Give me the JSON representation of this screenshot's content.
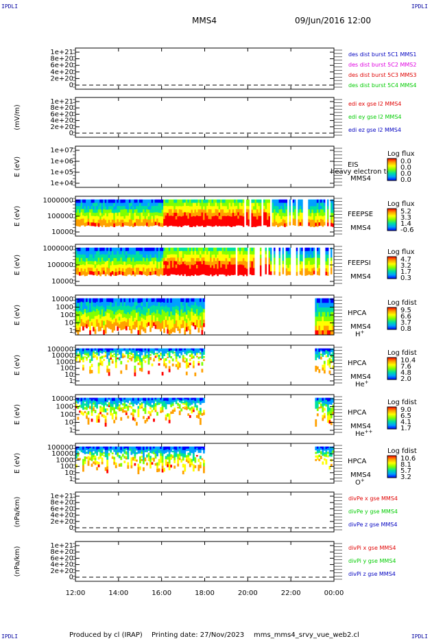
{
  "corner_label": "IPDLI",
  "header": {
    "spacecraft": "MMS4",
    "datetime": "09/Jun/2016 12:00"
  },
  "footer": {
    "produced": "Produced by cl (IRAP)",
    "printing": "Printing date: 27/Nov/2023",
    "script": "mms_mms4_srvy_vue_web2.cl"
  },
  "colors": {
    "red": "#e00000",
    "magenta": "#e000e0",
    "green": "#00cc00",
    "blue": "#0000c0",
    "colorbar": [
      "#ff0000",
      "#ffa000",
      "#ffff00",
      "#80ff00",
      "#00e0a0",
      "#00a0ff",
      "#0000ff"
    ]
  },
  "chart_data": [
    {
      "type": "line",
      "id": "dist",
      "yticks": [
        "1e+21",
        "8e+20",
        "6e+20",
        "4e+20",
        "2e+20",
        "0"
      ],
      "ylabel": "",
      "series": [
        {
          "name": "des dist burst 5C1 MMS1",
          "color": "#0000c0",
          "values": []
        },
        {
          "name": "des dist burst 5C2 MMS2",
          "color": "#e000e0",
          "values": []
        },
        {
          "name": "des dist burst 5C3 MMS3",
          "color": "#e00000",
          "values": []
        },
        {
          "name": "des dist burst 5C4 MMS4",
          "color": "#00cc00",
          "values": []
        }
      ]
    },
    {
      "type": "line",
      "id": "edi",
      "yticks": [
        "1e+21",
        "8e+20",
        "6e+20",
        "4e+20",
        "2e+20",
        "0"
      ],
      "ylabel": "(mV/m)",
      "series": [
        {
          "name": "edi ex gse l2 MMS4",
          "color": "#e00000",
          "values": []
        },
        {
          "name": "edi ey gse l2 MMS4",
          "color": "#00cc00",
          "values": []
        },
        {
          "name": "edi ez gse l2 MMS4",
          "color": "#0000c0",
          "values": []
        }
      ]
    },
    {
      "type": "heatmap",
      "id": "eis",
      "yticks": [
        "1e+07",
        "1e+06",
        "1e+05",
        "1e+04"
      ],
      "ylabel": "E (eV)",
      "labels": [
        "EIS",
        "MMS4"
      ],
      "overlay_text": "heavy electron to",
      "cb_title": "Log flux",
      "cb_ticks": [
        "0.0",
        "0.0",
        "0.0",
        "0.0"
      ]
    },
    {
      "type": "heatmap",
      "id": "feepse",
      "yticks": [
        "1000000",
        "100000",
        "10000"
      ],
      "ylabel": "E (eV)",
      "labels": [
        "FEEPSE",
        "MMS4"
      ],
      "cb_title": "Log flux",
      "cb_ticks": [
        "5.2",
        "3.3",
        "1.4",
        "-0.6"
      ]
    },
    {
      "type": "heatmap",
      "id": "feepsi",
      "yticks": [
        "1000000",
        "100000",
        "10000"
      ],
      "ylabel": "E (eV)",
      "labels": [
        "FEEPSI",
        "MMS4"
      ],
      "cb_title": "Log flux",
      "cb_ticks": [
        "4.7",
        "3.2",
        "1.7",
        "0.3"
      ]
    },
    {
      "type": "heatmap",
      "id": "hpca_h",
      "yticks": [
        "10000",
        "1000",
        "100",
        "10",
        "1"
      ],
      "ylabel": "E (eV)",
      "labels": [
        "HPCA",
        "MMS4"
      ],
      "species": "H",
      "species_sup": "+",
      "cb_title": "Log fdist",
      "cb_ticks": [
        "9.5",
        "6.6",
        "3.7",
        "0.8"
      ]
    },
    {
      "type": "heatmap",
      "id": "hpca_he",
      "yticks": [
        "100000",
        "10000",
        "1000",
        "100",
        "10",
        "1"
      ],
      "ylabel": "E (eV)",
      "labels": [
        "HPCA",
        "MMS4"
      ],
      "species": "He",
      "species_sup": "+",
      "cb_title": "Log fdist",
      "cb_ticks": [
        "10.4",
        "7.6",
        "4.8",
        "2.0"
      ]
    },
    {
      "type": "heatmap",
      "id": "hpca_hepp",
      "yticks": [
        "10000",
        "1000",
        "100",
        "10",
        "1"
      ],
      "ylabel": "E (eV)",
      "labels": [
        "HPCA",
        "MMS4"
      ],
      "species": "He",
      "species_sup": "++",
      "cb_title": "Log fdist",
      "cb_ticks": [
        "9.0",
        "6.5",
        "4.1",
        "1.7"
      ]
    },
    {
      "type": "heatmap",
      "id": "hpca_o",
      "yticks": [
        "100000",
        "10000",
        "1000",
        "100",
        "10",
        "1"
      ],
      "ylabel": "E (eV)",
      "labels": [
        "HPCA",
        "MMS4"
      ],
      "species": "O",
      "species_sup": "+",
      "cb_title": "Log fdist",
      "cb_ticks": [
        "10.6",
        "8.1",
        "5.7",
        "3.2"
      ]
    },
    {
      "type": "line",
      "id": "divpe",
      "yticks": [
        "1e+21",
        "8e+20",
        "6e+20",
        "4e+20",
        "2e+20",
        "0"
      ],
      "ylabel": "(nPa/km)",
      "series": [
        {
          "name": "divPe x gse MMS4",
          "color": "#e00000",
          "values": []
        },
        {
          "name": "divPe y gse MMS4",
          "color": "#00cc00",
          "values": []
        },
        {
          "name": "divPe z gse MMS4",
          "color": "#0000c0",
          "values": []
        }
      ]
    },
    {
      "type": "line",
      "id": "divpi",
      "yticks": [
        "1e+21",
        "8e+20",
        "6e+20",
        "4e+20",
        "2e+20",
        "0"
      ],
      "ylabel": "(nPa/km)",
      "series": [
        {
          "name": "divPi x gse MMS4",
          "color": "#e00000",
          "values": []
        },
        {
          "name": "divPi y gse MMS4",
          "color": "#00cc00",
          "values": []
        },
        {
          "name": "divPi z gse MMS4",
          "color": "#0000c0",
          "values": []
        }
      ]
    }
  ],
  "xaxis": {
    "ticks": [
      "12:00",
      "14:00",
      "16:00",
      "18:00",
      "20:00",
      "22:00",
      "00:00"
    ]
  }
}
